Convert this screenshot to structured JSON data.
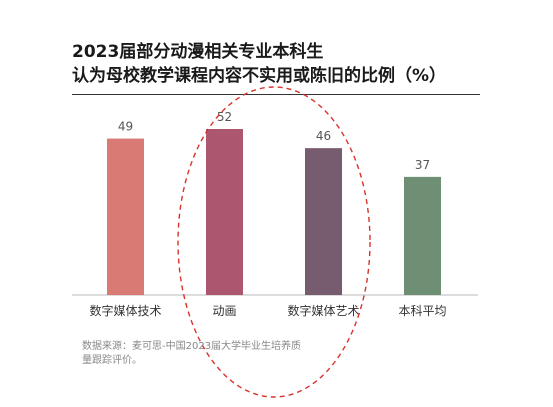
{
  "title_line1": "2023届部分动漫相关专业本科生",
  "title_line2": "认为母校教学课程内容不实用或陈旧的比例（%）",
  "source_line1": "数据来源：麦可思-中国2023届大学毕业生培养质",
  "source_line2": "量跟踪评价。",
  "chart_data": {
    "type": "bar",
    "categories": [
      "数字媒体技术",
      "动画",
      "数字媒体艺术",
      "本科平均"
    ],
    "values": [
      49,
      52,
      46,
      37
    ],
    "ylim": [
      0,
      52
    ],
    "grid": false,
    "colors": [
      "#d97b74",
      "#ac5670",
      "#775c6f",
      "#6f8f74"
    ],
    "annotation": {
      "type": "dashed-ellipse",
      "color": "#d9322b",
      "highlights": [
        "动画",
        "数字媒体艺术"
      ]
    }
  }
}
